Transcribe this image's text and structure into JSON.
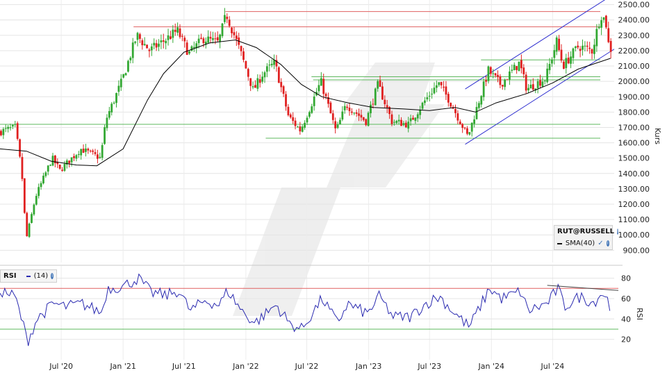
{
  "chart_data": [
    {
      "type": "candlestick",
      "title": "",
      "instrument": "RUT@RUSSELL",
      "ylabel": "Kurs",
      "ylim": [
        820,
        2530
      ],
      "yticks": [
        "2500.00",
        "2400.00",
        "2300.00",
        "2200.00",
        "2100.00",
        "2000.00",
        "1900.00",
        "1800.00",
        "1700.00",
        "1600.00",
        "1500.00",
        "1400.00",
        "1300.00",
        "1200.00",
        "1100.00",
        "1000.00",
        "900.00"
      ],
      "x_range": [
        "2020-01-01",
        "2024-12-31"
      ],
      "xticks": [
        {
          "label": "Jul '20",
          "date": "2020-07-01"
        },
        {
          "label": "Jan '21",
          "date": "2021-01-01"
        },
        {
          "label": "Jul '21",
          "date": "2021-07-01"
        },
        {
          "label": "Jan '22",
          "date": "2022-01-01"
        },
        {
          "label": "Jul '22",
          "date": "2022-07-01"
        },
        {
          "label": "Jan '23",
          "date": "2023-01-01"
        },
        {
          "label": "Jul '23",
          "date": "2023-07-01"
        },
        {
          "label": "Jan '24",
          "date": "2024-01-01"
        },
        {
          "label": "Jul '24",
          "date": "2024-07-01"
        }
      ],
      "price_path": [
        [
          "2020-01-01",
          1670
        ],
        [
          "2020-02-20",
          1700
        ],
        [
          "2020-03-10",
          1400
        ],
        [
          "2020-03-23",
          970
        ],
        [
          "2020-04-20",
          1250
        ],
        [
          "2020-06-08",
          1500
        ],
        [
          "2020-07-01",
          1420
        ],
        [
          "2020-09-01",
          1560
        ],
        [
          "2020-10-30",
          1500
        ],
        [
          "2020-11-15",
          1750
        ],
        [
          "2021-01-01",
          2000
        ],
        [
          "2021-02-15",
          2300
        ],
        [
          "2021-03-25",
          2200
        ],
        [
          "2021-05-10",
          2270
        ],
        [
          "2021-06-15",
          2330
        ],
        [
          "2021-07-20",
          2180
        ],
        [
          "2021-09-01",
          2280
        ],
        [
          "2021-10-15",
          2250
        ],
        [
          "2021-11-08",
          2440
        ],
        [
          "2021-12-20",
          2190
        ],
        [
          "2022-01-27",
          1940
        ],
        [
          "2022-02-24",
          2050
        ],
        [
          "2022-04-01",
          2120
        ],
        [
          "2022-05-12",
          1770
        ],
        [
          "2022-06-16",
          1680
        ],
        [
          "2022-08-16",
          2000
        ],
        [
          "2022-09-30",
          1670
        ],
        [
          "2022-10-30",
          1850
        ],
        [
          "2022-12-28",
          1740
        ],
        [
          "2023-02-02",
          1980
        ],
        [
          "2023-03-15",
          1740
        ],
        [
          "2023-05-04",
          1720
        ],
        [
          "2023-06-20",
          1870
        ],
        [
          "2023-07-31",
          1990
        ],
        [
          "2023-09-01",
          1880
        ],
        [
          "2023-10-27",
          1640
        ],
        [
          "2023-12-27",
          2070
        ],
        [
          "2024-02-01",
          1980
        ],
        [
          "2024-03-28",
          2120
        ],
        [
          "2024-04-19",
          1950
        ],
        [
          "2024-06-14",
          2020
        ],
        [
          "2024-07-17",
          2260
        ],
        [
          "2024-08-05",
          2100
        ],
        [
          "2024-09-20",
          2230
        ],
        [
          "2024-10-31",
          2200
        ],
        [
          "2024-11-25",
          2440
        ],
        [
          "2024-12-10",
          2390
        ],
        [
          "2024-12-20",
          2210
        ]
      ],
      "sma_label": "SMA(40)",
      "sma_color": "#000000",
      "sma_path": [
        [
          "2020-01-01",
          1560
        ],
        [
          "2020-03-20",
          1545
        ],
        [
          "2020-06-01",
          1480
        ],
        [
          "2020-08-15",
          1455
        ],
        [
          "2020-10-15",
          1450
        ],
        [
          "2021-01-01",
          1560
        ],
        [
          "2021-03-15",
          1880
        ],
        [
          "2021-05-01",
          2050
        ],
        [
          "2021-07-01",
          2190
        ],
        [
          "2021-09-15",
          2250
        ],
        [
          "2021-12-01",
          2270
        ],
        [
          "2022-02-01",
          2220
        ],
        [
          "2022-04-15",
          2110
        ],
        [
          "2022-06-15",
          1980
        ],
        [
          "2022-08-15",
          1900
        ],
        [
          "2022-11-01",
          1860
        ],
        [
          "2023-01-15",
          1830
        ],
        [
          "2023-04-15",
          1820
        ],
        [
          "2023-07-01",
          1810
        ],
        [
          "2023-09-15",
          1830
        ],
        [
          "2023-11-15",
          1800
        ],
        [
          "2024-01-15",
          1860
        ],
        [
          "2024-04-15",
          1920
        ],
        [
          "2024-07-01",
          1990
        ],
        [
          "2024-09-15",
          2080
        ],
        [
          "2024-12-20",
          2150
        ]
      ],
      "horizontal_lines": [
        {
          "value": 2455,
          "from": "2021-11-01",
          "color": "#e06060"
        },
        {
          "value": 2355,
          "from": "2021-02-01",
          "color": "#e06060"
        },
        {
          "value": 2140,
          "from": "2023-12-01",
          "color": "#5cb85c"
        },
        {
          "value": 2030,
          "from": "2022-07-15",
          "color": "#5cb85c"
        },
        {
          "value": 2010,
          "from": "2022-07-20",
          "color": "#5cb85c"
        },
        {
          "value": 1720,
          "from": "2020-01-01",
          "color": "#5cb85c"
        },
        {
          "value": 1630,
          "from": "2022-03-01",
          "color": "#5cb85c"
        }
      ],
      "trend_channel": {
        "color": "#3030d0",
        "lower": [
          [
            "2023-10-15",
            1590
          ],
          [
            "2024-12-31",
            2210
          ]
        ],
        "upper": [
          [
            "2023-10-15",
            1950
          ],
          [
            "2024-12-31",
            2570
          ]
        ]
      },
      "up_color": "#33a833",
      "down_color": "#e02020"
    },
    {
      "type": "line",
      "title": "",
      "indicator": "RSI",
      "period_label": "(14)",
      "ylabel": "RSI",
      "ylim": [
        0,
        92
      ],
      "yticks": [
        "80",
        "60",
        "40",
        "20"
      ],
      "levels": [
        {
          "value": 70,
          "color": "#e06060"
        },
        {
          "value": 30,
          "color": "#5cb85c"
        }
      ],
      "line_color": "#2a2ab0",
      "divergence_line": {
        "color": "#444444",
        "points": [
          [
            "2024-06-15",
            73
          ],
          [
            "2024-12-31",
            68
          ]
        ]
      },
      "rsi_path": [
        [
          "2020-01-01",
          68
        ],
        [
          "2020-02-15",
          62
        ],
        [
          "2020-03-01",
          45
        ],
        [
          "2020-03-23",
          18
        ],
        [
          "2020-04-20",
          40
        ],
        [
          "2020-06-08",
          55
        ],
        [
          "2020-07-15",
          52
        ],
        [
          "2020-09-01",
          55
        ],
        [
          "2020-10-30",
          46
        ],
        [
          "2020-11-15",
          70
        ],
        [
          "2021-01-01",
          72
        ],
        [
          "2021-02-15",
          80
        ],
        [
          "2021-03-25",
          66
        ],
        [
          "2021-05-10",
          63
        ],
        [
          "2021-06-15",
          68
        ],
        [
          "2021-07-20",
          48
        ],
        [
          "2021-09-01",
          58
        ],
        [
          "2021-10-15",
          54
        ],
        [
          "2021-11-08",
          68
        ],
        [
          "2021-12-20",
          48
        ],
        [
          "2022-01-27",
          36
        ],
        [
          "2022-03-01",
          45
        ],
        [
          "2022-04-01",
          54
        ],
        [
          "2022-05-12",
          35
        ],
        [
          "2022-06-16",
          30
        ],
        [
          "2022-08-16",
          60
        ],
        [
          "2022-09-30",
          36
        ],
        [
          "2022-10-30",
          55
        ],
        [
          "2022-12-28",
          45
        ],
        [
          "2023-02-02",
          62
        ],
        [
          "2023-03-15",
          42
        ],
        [
          "2023-05-04",
          42
        ],
        [
          "2023-06-20",
          55
        ],
        [
          "2023-07-31",
          62
        ],
        [
          "2023-09-01",
          50
        ],
        [
          "2023-10-27",
          32
        ],
        [
          "2023-12-27",
          70
        ],
        [
          "2024-02-01",
          60
        ],
        [
          "2024-03-28",
          67
        ],
        [
          "2024-04-19",
          48
        ],
        [
          "2024-06-14",
          55
        ],
        [
          "2024-07-17",
          70
        ],
        [
          "2024-08-05",
          52
        ],
        [
          "2024-09-20",
          62
        ],
        [
          "2024-10-31",
          56
        ],
        [
          "2024-11-25",
          66
        ],
        [
          "2024-12-10",
          60
        ],
        [
          "2024-12-20",
          49
        ]
      ]
    }
  ]
}
